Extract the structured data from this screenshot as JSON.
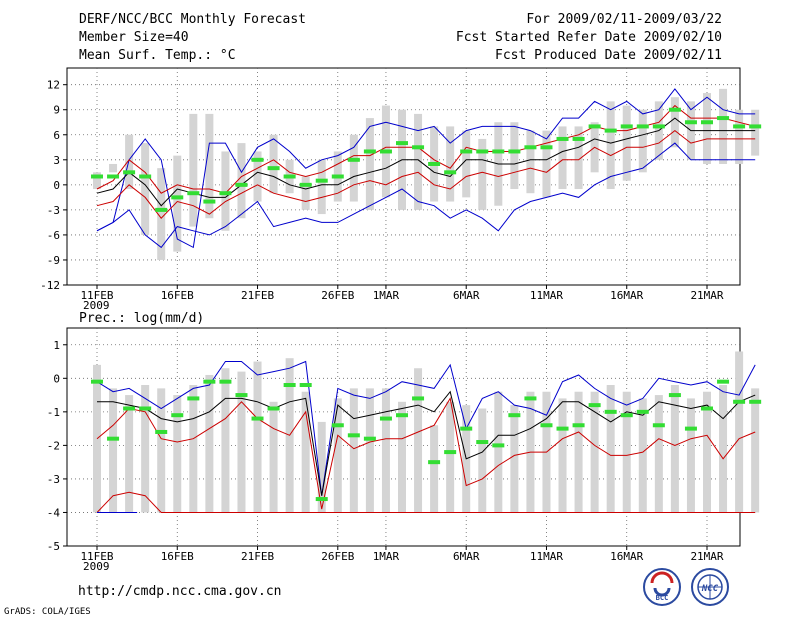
{
  "header": {
    "title": "DERF/NCC/BCC Monthly Forecast",
    "member_size": "Member Size=40",
    "variable": "Mean Surf. Temp.: °C",
    "period": "For 2009/02/11-2009/03/22",
    "started": "Fcst Started Refer Date 2009/02/10",
    "produced": "Fcst Produced Date 2009/02/11"
  },
  "footer": {
    "url": "http://cmdp.ncc.cma.gov.cn",
    "grads": "GrADS: COLA/IGES"
  },
  "logos": [
    {
      "name": "bcc-logo",
      "text": "BCC"
    },
    {
      "name": "ncc-logo",
      "text": "NCC"
    }
  ],
  "colors": {
    "upper": "#0000cc",
    "mean": "#000000",
    "spread": "#cc0000",
    "box": "#d4d4d4",
    "marker": "#33dd33"
  },
  "chart_data": [
    {
      "type": "box",
      "title": "Mean Surf. Temp.: °C",
      "x_tick_labels": [
        "11FEB",
        "16FEB",
        "21FEB",
        "26FEB",
        "1MAR",
        "6MAR",
        "11MAR",
        "16MAR",
        "21MAR"
      ],
      "x_tick_days": [
        0,
        5,
        10,
        15,
        18,
        23,
        28,
        33,
        38
      ],
      "x_year": "2009",
      "ylim": [
        -12,
        14
      ],
      "yticks": [
        -12,
        -9,
        -6,
        -3,
        0,
        3,
        6,
        9,
        12
      ],
      "grid": true,
      "box_low": [
        -0.5,
        1.5,
        -0.5,
        -6,
        -9,
        -8,
        -5,
        -4,
        -5.5,
        -4,
        -2,
        -1,
        -1,
        -3,
        -3.5,
        -2,
        -2,
        -3,
        -1.5,
        -3,
        -3,
        -2,
        -2,
        -1.5,
        -3,
        -2.5,
        -0.5,
        -1,
        -1.5,
        -0.5,
        -0.5,
        1.5,
        -0.5,
        0.5,
        1.5,
        3,
        4.5,
        3,
        2.5,
        2.5,
        2.5,
        3.5
      ],
      "box_high": [
        1.5,
        2.5,
        6,
        5,
        2,
        3.5,
        8.5,
        8.5,
        4,
        5,
        4,
        6,
        3,
        1,
        3,
        4,
        6,
        8,
        9.5,
        9,
        8.5,
        7,
        7,
        6.5,
        5.5,
        7.5,
        7.5,
        6.5,
        6.5,
        7,
        7,
        7.5,
        10,
        9.5,
        9,
        10,
        10.5,
        10,
        11,
        11.5,
        9,
        9
      ],
      "top": [
        -5.5,
        -4.5,
        3,
        5.5,
        3,
        -6.5,
        -7.5,
        5,
        5,
        1.5,
        4.5,
        5.5,
        4,
        2,
        3,
        3.5,
        4.5,
        7,
        7.5,
        7,
        6.5,
        7,
        5,
        6.5,
        7,
        7,
        7,
        6.5,
        5.5,
        8,
        8,
        10,
        9,
        10,
        8.5,
        9,
        11.5,
        9,
        10.5,
        9,
        8.5,
        8.5
      ],
      "bottom": [
        -5.5,
        -4.5,
        -3,
        -6,
        -7.5,
        -5,
        -5.5,
        -6,
        -5,
        -3.5,
        -2,
        -5,
        -4.5,
        -4,
        -4.5,
        -4.5,
        -3.5,
        -2.5,
        -1.5,
        -0.5,
        -2,
        -2.5,
        -4,
        -3,
        -4,
        -5.5,
        -3,
        -2,
        -1.5,
        -1,
        -1.5,
        0,
        1,
        1.5,
        2,
        3.5,
        5,
        3,
        3,
        3,
        3,
        3
      ],
      "hi": [
        -0.5,
        0.5,
        3,
        1.5,
        -1,
        0,
        -0.5,
        -0.5,
        -1,
        1,
        2,
        3,
        1.5,
        1,
        1.5,
        2.5,
        3.5,
        3.5,
        4.5,
        4.5,
        4.5,
        3,
        2,
        4.5,
        4,
        4,
        4,
        4.5,
        5,
        5.5,
        6,
        7,
        6.5,
        6.5,
        7,
        7.5,
        9.5,
        8,
        8,
        8,
        7.5,
        7
      ],
      "mean": [
        -1,
        -0.5,
        1.5,
        0,
        -2.5,
        -0.5,
        -1,
        -1.5,
        -1.5,
        0,
        1.5,
        1,
        0,
        -0.5,
        0,
        0,
        1,
        1.5,
        2,
        3,
        3,
        1.5,
        1,
        3,
        3,
        2.5,
        2.5,
        3,
        3,
        4,
        4.5,
        5.5,
        5,
        5.5,
        6,
        6.5,
        8,
        6.5,
        6.5,
        6.5,
        6.5,
        6.5
      ],
      "lo": [
        -2.5,
        -2,
        0,
        -1.5,
        -4,
        -2,
        -2.5,
        -3.5,
        -2,
        -1,
        0,
        -1,
        -1.5,
        -2,
        -1.5,
        -1,
        0,
        0.5,
        0,
        1,
        1.5,
        0,
        -0.5,
        1,
        1.5,
        1,
        1.5,
        2,
        1.5,
        3,
        3,
        4.5,
        3.5,
        4.5,
        4.5,
        5,
        6.5,
        5,
        5.5,
        5.5,
        5.5,
        5.5
      ],
      "marker": [
        1,
        1,
        1.5,
        1,
        -3,
        -1.5,
        -1,
        -2,
        -1,
        0,
        3,
        2,
        1,
        0,
        0.5,
        1,
        3,
        4,
        4,
        5,
        4.5,
        2.5,
        1.5,
        4,
        4,
        4,
        4,
        4.5,
        4.5,
        5.5,
        5.5,
        7,
        6.5,
        7,
        7,
        7,
        9,
        7.5,
        7.5,
        8,
        7,
        7
      ]
    },
    {
      "type": "box",
      "title": "Prec.: log(mm/d)",
      "x_tick_labels": [
        "11FEB",
        "16FEB",
        "21FEB",
        "26FEB",
        "1MAR",
        "6MAR",
        "11MAR",
        "16MAR",
        "21MAR"
      ],
      "x_tick_days": [
        0,
        5,
        10,
        15,
        18,
        23,
        28,
        33,
        38
      ],
      "x_year": "2009",
      "ylim": [
        -5,
        1.5
      ],
      "yticks": [
        -5,
        -4,
        -3,
        -2,
        -1,
        0,
        1
      ],
      "grid": true,
      "box_low": [
        -4,
        -4,
        -4,
        -4,
        -4,
        -4,
        -4,
        -4,
        -4,
        -4,
        -4,
        -4,
        -4,
        -4,
        -4,
        -4,
        -4,
        -4,
        -4,
        -4,
        -4,
        -4,
        -4,
        -4,
        -4,
        -4,
        -4,
        -4,
        -4,
        -4,
        -4,
        -4,
        -4,
        -4,
        -4,
        -4,
        -4,
        -4,
        -4,
        -4,
        -4,
        -4
      ],
      "box_high": [
        0.4,
        -0.3,
        -0.5,
        -0.2,
        -0.3,
        -0.5,
        -0.2,
        0.1,
        0.3,
        0.2,
        0.5,
        -0.7,
        0.6,
        -0.4,
        -1.3,
        -0.6,
        -0.3,
        -0.3,
        -0.3,
        -0.7,
        0.3,
        -1.4,
        -0.7,
        -0.8,
        -0.9,
        -0.4,
        -0.8,
        -0.4,
        -0.4,
        -0.6,
        -0.4,
        -0.4,
        -0.2,
        -0.4,
        -0.6,
        -0.5,
        -0.2,
        -0.6,
        -0.4,
        -0.2,
        0.8,
        -0.3
      ],
      "top": [
        -0.1,
        -0.4,
        -0.3,
        -0.6,
        -0.9,
        -0.6,
        -0.3,
        -0.2,
        0.5,
        0.5,
        0.1,
        0.2,
        0.3,
        0.5,
        -3.5,
        -0.3,
        -0.5,
        -0.6,
        -0.4,
        -0.1,
        -0.2,
        -0.3,
        0.4,
        -1.5,
        -0.6,
        -0.4,
        -0.8,
        -0.9,
        -1.1,
        -0.1,
        0.1,
        -0.3,
        -0.6,
        -0.8,
        -0.6,
        0.0,
        -0.1,
        -0.2,
        -0.1,
        -0.4,
        -0.5,
        0.4
      ],
      "mean": [
        -0.7,
        -0.7,
        -0.8,
        -0.9,
        -1.2,
        -1.3,
        -1.2,
        -1.0,
        -0.6,
        -0.6,
        -0.7,
        -0.9,
        -0.7,
        -0.6,
        -3.5,
        -0.8,
        -1.2,
        -1.1,
        -1.0,
        -0.9,
        -0.8,
        -1.0,
        -0.4,
        -2.4,
        -2.2,
        -1.7,
        -1.7,
        -1.5,
        -1.2,
        -0.7,
        -0.7,
        -1.0,
        -1.3,
        -1.0,
        -1.1,
        -0.7,
        -0.8,
        -0.9,
        -0.8,
        -1.2,
        -0.7,
        -0.5
      ],
      "lo": [
        -1.8,
        -1.4,
        -0.9,
        -1.0,
        -1.8,
        -1.9,
        -1.8,
        -1.5,
        -1.2,
        -0.7,
        -1.2,
        -1.5,
        -1.7,
        -1.0,
        -3.9,
        -1.7,
        -2.1,
        -1.9,
        -1.8,
        -1.8,
        -1.6,
        -1.4,
        -0.6,
        -3.2,
        -3.0,
        -2.6,
        -2.3,
        -2.2,
        -2.2,
        -1.8,
        -1.6,
        -2.0,
        -2.3,
        -2.3,
        -2.2,
        -1.8,
        -2.0,
        -1.8,
        -1.7,
        -2.4,
        -1.8,
        -1.6
      ],
      "bottom": [
        -4,
        -3.5,
        -3.4,
        -3.5,
        -4,
        -4,
        -4,
        -4,
        -4,
        -4,
        -4,
        -4,
        -4,
        -4,
        -4,
        -4,
        -4,
        -4,
        -4,
        -4,
        -4,
        -4,
        -4,
        -4,
        -4,
        -4,
        -4,
        -4,
        -4,
        -4,
        -4,
        -4,
        -4,
        -4,
        -4,
        -4,
        -4,
        -4,
        -4,
        -4,
        -4,
        -4
      ],
      "marker": [
        -0.1,
        -1.8,
        -0.9,
        -0.9,
        -1.6,
        -1.1,
        -0.6,
        -0.1,
        -0.1,
        -0.5,
        -1.2,
        -0.9,
        -0.2,
        -0.2,
        -3.6,
        -1.4,
        -1.7,
        -1.8,
        -1.2,
        -1.1,
        -0.6,
        -2.5,
        -2.2,
        -1.5,
        -1.9,
        -2.0,
        -1.1,
        -0.6,
        -1.4,
        -1.5,
        -1.4,
        -0.8,
        -1.0,
        -1.1,
        -1.0,
        -1.4,
        -0.5,
        -1.5,
        -0.9,
        -0.1,
        -0.7,
        -0.7
      ]
    }
  ]
}
